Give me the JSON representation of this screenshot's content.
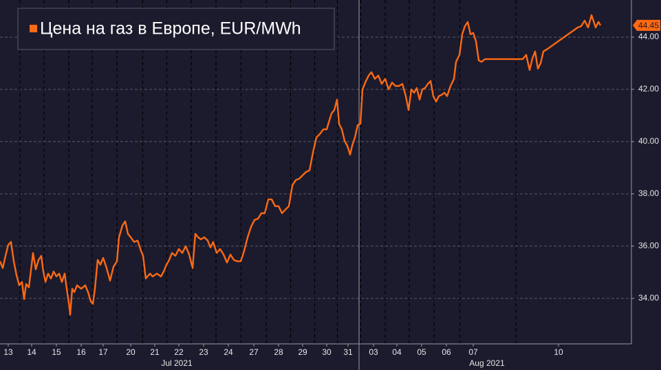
{
  "chart_data": {
    "type": "line",
    "legend": "top-left",
    "grid": true,
    "xlim": [
      0,
      918
    ],
    "ylim": [
      32.26,
      45.42
    ],
    "yticks": [
      {
        "value": 34,
        "label": "34.00"
      },
      {
        "value": 36,
        "label": "36.00"
      },
      {
        "value": 38,
        "label": "38.00"
      },
      {
        "value": 40,
        "label": "40.00"
      },
      {
        "value": 42,
        "label": "42.00"
      },
      {
        "value": 44,
        "label": "44.00"
      }
    ],
    "xticks": [
      {
        "value": 12,
        "label": "13"
      },
      {
        "value": 46,
        "label": "14"
      },
      {
        "value": 82,
        "label": "15"
      },
      {
        "value": 118,
        "label": "16"
      },
      {
        "value": 150,
        "label": "17"
      },
      {
        "value": 190,
        "label": "20"
      },
      {
        "value": 225,
        "label": "21"
      },
      {
        "value": 260,
        "label": "22"
      },
      {
        "value": 296,
        "label": "23"
      },
      {
        "value": 332,
        "label": "24"
      },
      {
        "value": 369,
        "label": "27"
      },
      {
        "value": 405,
        "label": "28"
      },
      {
        "value": 440,
        "label": "29"
      },
      {
        "value": 475,
        "label": "30"
      },
      {
        "value": 506,
        "label": "31"
      },
      {
        "value": 543,
        "label": "03"
      },
      {
        "value": 577,
        "label": "04"
      },
      {
        "value": 613,
        "label": "05"
      },
      {
        "value": 649,
        "label": "06"
      },
      {
        "value": 688,
        "label": "07"
      },
      {
        "value": 812,
        "label": "10"
      }
    ],
    "month_labels": [
      {
        "label": "Jul 2021",
        "x": 257
      },
      {
        "label": "Aug 2021",
        "x": 708
      }
    ],
    "month_separators": [
      522
    ],
    "x": [
      0,
      4,
      8,
      12,
      16,
      20,
      24,
      28,
      32,
      35,
      38,
      42,
      46,
      48,
      52,
      56,
      60,
      63,
      66,
      70,
      74,
      78,
      82,
      86,
      90,
      94,
      97,
      100,
      102,
      105,
      108,
      112,
      118,
      124,
      128,
      132,
      135,
      138,
      142,
      146,
      150,
      155,
      160,
      165,
      170,
      173,
      178,
      182,
      186,
      190,
      195,
      200,
      205,
      208,
      212,
      218,
      222,
      228,
      234,
      238,
      242,
      246,
      250,
      255,
      260,
      265,
      270,
      275,
      280,
      284,
      288,
      292,
      297,
      302,
      306,
      310,
      315,
      320,
      325,
      330,
      335,
      340,
      345,
      350,
      355,
      360,
      365,
      370,
      375,
      380,
      385,
      390,
      395,
      400,
      405,
      410,
      415,
      420,
      425,
      430,
      435,
      440,
      445,
      450,
      455,
      460,
      465,
      470,
      475,
      478,
      482,
      486,
      490,
      493,
      497,
      501,
      505,
      509,
      512,
      516,
      520,
      524,
      527,
      532,
      536,
      540,
      545,
      550,
      555,
      560,
      565,
      570,
      575,
      580,
      585,
      590,
      594,
      598,
      602,
      606,
      610,
      614,
      618,
      622,
      626,
      630,
      634,
      638,
      642,
      646,
      650,
      655,
      660,
      663,
      668,
      672,
      676,
      680,
      684,
      688,
      692,
      696,
      700,
      705,
      720,
      760,
      765,
      770,
      774,
      778,
      782,
      786,
      790,
      795,
      840,
      845,
      850,
      855,
      860,
      866,
      870,
      873
    ],
    "series": [
      {
        "name": "Цена на газ в Европе, EUR/MWh",
        "color": "#ff6a13",
        "values": [
          35.42,
          35.16,
          35.63,
          36.05,
          36.16,
          35.42,
          34.89,
          34.5,
          34.63,
          33.97,
          34.55,
          34.42,
          35.29,
          35.74,
          35.11,
          35.47,
          35.63,
          35.03,
          34.63,
          34.95,
          34.76,
          35.03,
          34.84,
          34.95,
          34.63,
          34.95,
          34.37,
          33.84,
          33.37,
          34.37,
          34.24,
          34.5,
          34.37,
          34.5,
          34.24,
          33.89,
          33.79,
          34.37,
          35.47,
          35.29,
          35.55,
          35.16,
          34.68,
          35.21,
          35.42,
          36.34,
          36.79,
          36.95,
          36.47,
          36.34,
          36.16,
          36.21,
          35.82,
          35.63,
          34.76,
          34.95,
          34.84,
          34.95,
          34.84,
          35.03,
          35.29,
          35.47,
          35.74,
          35.63,
          35.89,
          35.74,
          36.0,
          35.68,
          35.16,
          36.47,
          36.34,
          36.26,
          36.34,
          36.21,
          35.95,
          36.16,
          35.74,
          35.89,
          35.68,
          35.37,
          35.68,
          35.47,
          35.42,
          35.42,
          35.82,
          36.34,
          36.74,
          37.0,
          37.05,
          37.26,
          37.26,
          37.79,
          37.79,
          37.53,
          37.53,
          37.26,
          37.4,
          37.53,
          38.32,
          38.53,
          38.58,
          38.71,
          38.84,
          38.9,
          39.58,
          40.16,
          40.29,
          40.47,
          40.47,
          40.74,
          41.08,
          41.21,
          41.61,
          40.68,
          40.47,
          40.03,
          39.84,
          39.5,
          39.84,
          40.16,
          40.63,
          40.68,
          42.0,
          42.32,
          42.53,
          42.66,
          42.4,
          42.53,
          42.21,
          42.4,
          42.0,
          42.26,
          42.13,
          42.13,
          42.21,
          41.74,
          41.21,
          42.0,
          41.87,
          42.05,
          41.61,
          42.0,
          42.05,
          42.21,
          42.32,
          41.74,
          41.53,
          41.74,
          41.79,
          41.87,
          41.74,
          42.13,
          42.4,
          43.05,
          43.32,
          44.11,
          44.42,
          44.58,
          44.11,
          44.16,
          43.84,
          43.11,
          43.05,
          43.16,
          43.16,
          43.16,
          43.32,
          42.74,
          43.18,
          43.45,
          42.79,
          43.0,
          43.45,
          43.53,
          44.37,
          44.42,
          44.63,
          44.37,
          44.84,
          44.37,
          44.58,
          44.45
        ]
      }
    ]
  }
}
